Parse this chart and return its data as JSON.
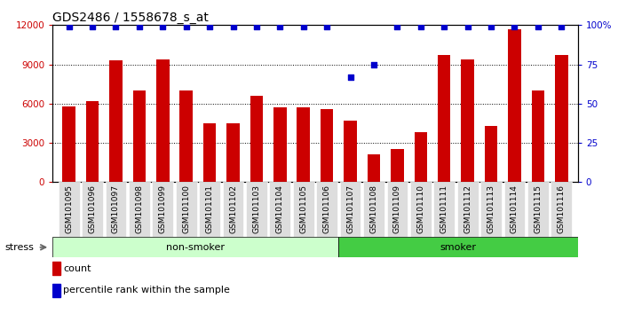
{
  "title": "GDS2486 / 1558678_s_at",
  "categories": [
    "GSM101095",
    "GSM101096",
    "GSM101097",
    "GSM101098",
    "GSM101099",
    "GSM101100",
    "GSM101101",
    "GSM101102",
    "GSM101103",
    "GSM101104",
    "GSM101105",
    "GSM101106",
    "GSM101107",
    "GSM101108",
    "GSM101109",
    "GSM101110",
    "GSM101111",
    "GSM101112",
    "GSM101113",
    "GSM101114",
    "GSM101115",
    "GSM101116"
  ],
  "counts": [
    5800,
    6200,
    9300,
    7000,
    9400,
    7000,
    4500,
    4500,
    6600,
    5700,
    5700,
    5600,
    4700,
    2100,
    2500,
    3800,
    9700,
    9400,
    4300,
    11700,
    7000,
    9700
  ],
  "percentile_ranks": [
    99,
    99,
    99,
    99,
    99,
    99,
    99,
    99,
    99,
    99,
    99,
    99,
    67,
    75,
    99,
    99,
    99,
    99,
    99,
    99,
    99,
    99
  ],
  "bar_color": "#cc0000",
  "dot_color": "#0000cc",
  "non_smoker_count": 12,
  "smoker_count": 10,
  "non_smoker_label": "non-smoker",
  "smoker_label": "smoker",
  "non_smoker_color": "#ccffcc",
  "smoker_color": "#44cc44",
  "stress_label": "stress",
  "ylim_left": [
    0,
    12000
  ],
  "ylim_right": [
    0,
    100
  ],
  "yticks_left": [
    0,
    3000,
    6000,
    9000,
    12000
  ],
  "yticks_right": [
    0,
    25,
    50,
    75,
    100
  ],
  "grid_color": "#000000",
  "background_color": "#ffffff",
  "legend_count_label": "count",
  "legend_pct_label": "percentile rank within the sample",
  "title_fontsize": 10,
  "tick_fontsize": 6.5,
  "axis_color_left": "#cc0000",
  "axis_color_right": "#0000cc",
  "xticklabel_bg": "#dddddd"
}
